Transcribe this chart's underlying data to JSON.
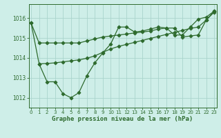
{
  "line1_x": [
    0,
    1,
    2,
    3,
    4,
    5,
    6,
    7,
    8,
    9,
    10,
    11,
    12,
    13,
    14,
    15,
    16,
    17,
    18,
    19,
    20,
    21,
    22,
    23
  ],
  "line1_y": [
    1015.75,
    1014.75,
    1014.75,
    1014.75,
    1014.75,
    1014.75,
    1014.75,
    1014.85,
    1014.95,
    1015.05,
    1015.1,
    1015.15,
    1015.2,
    1015.25,
    1015.3,
    1015.35,
    1015.45,
    1015.5,
    1015.5,
    1015.05,
    1015.1,
    1015.15,
    1015.9,
    1016.3
  ],
  "line2_x": [
    0,
    1,
    2,
    3,
    4,
    5,
    6,
    7,
    8,
    9,
    10,
    11,
    12,
    13,
    14,
    15,
    16,
    17,
    18,
    19,
    20,
    21,
    22,
    23
  ],
  "line2_y": [
    1015.75,
    1013.7,
    1012.8,
    1012.8,
    1012.2,
    1012.0,
    1012.25,
    1013.1,
    1013.75,
    1014.25,
    1014.7,
    1015.55,
    1015.55,
    1015.3,
    1015.35,
    1015.45,
    1015.55,
    1015.5,
    1015.15,
    1015.15,
    1015.55,
    1015.95,
    1016.05,
    1016.35
  ],
  "line3_x": [
    1,
    2,
    3,
    4,
    5,
    6,
    7,
    8,
    9,
    10,
    11,
    12,
    13,
    14,
    15,
    16,
    17,
    18,
    19,
    20,
    21,
    22,
    23
  ],
  "line3_y": [
    1013.7,
    1013.72,
    1013.75,
    1013.8,
    1013.85,
    1013.9,
    1013.98,
    1014.1,
    1014.28,
    1014.45,
    1014.58,
    1014.68,
    1014.78,
    1014.88,
    1014.98,
    1015.08,
    1015.18,
    1015.28,
    1015.38,
    1015.48,
    1015.55,
    1015.9,
    1016.35
  ],
  "line_color": "#2d6a2d",
  "bg_color": "#ceeee8",
  "grid_color": "#aad4cc",
  "xlabel": "Graphe pression niveau de la mer (hPa)",
  "ylim": [
    1011.5,
    1016.7
  ],
  "yticks": [
    1012,
    1013,
    1014,
    1015,
    1016
  ],
  "xticks": [
    0,
    1,
    2,
    3,
    4,
    5,
    6,
    7,
    8,
    9,
    10,
    11,
    12,
    13,
    14,
    15,
    16,
    17,
    18,
    19,
    20,
    21,
    22,
    23
  ]
}
